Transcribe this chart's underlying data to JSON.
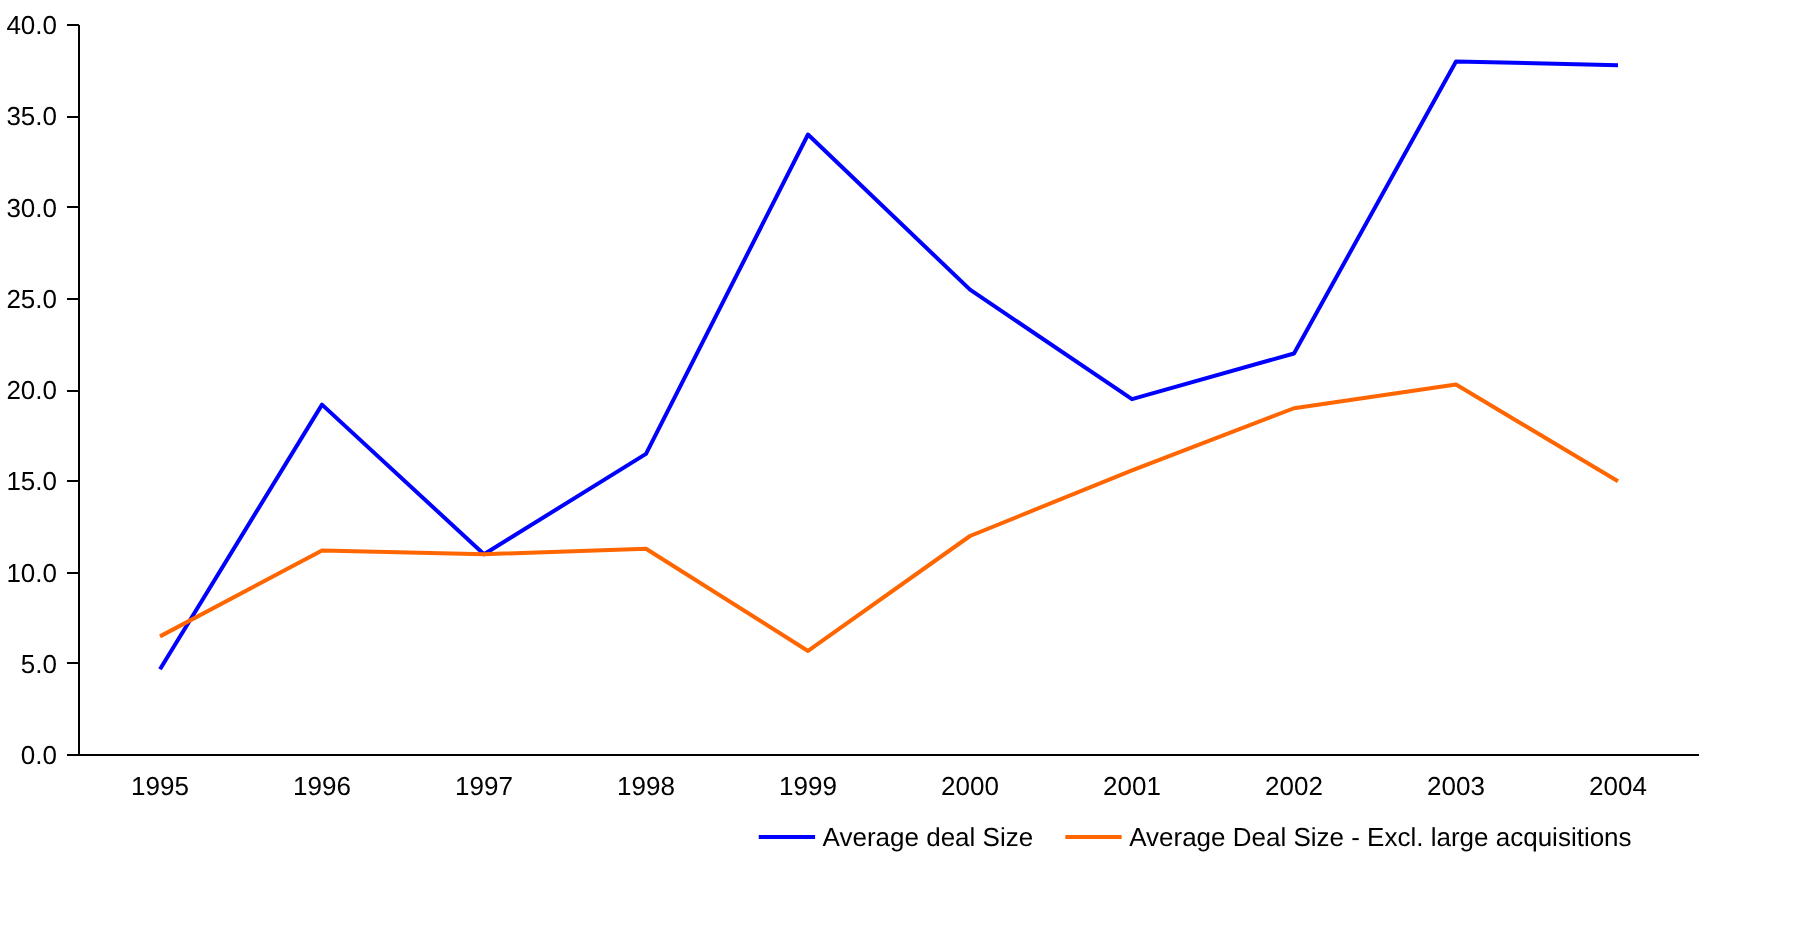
{
  "chart_data": {
    "type": "line",
    "categories": [
      "1995",
      "1996",
      "1997",
      "1998",
      "1999",
      "2000",
      "2001",
      "2002",
      "2003",
      "2004"
    ],
    "series": [
      {
        "name": "Average deal Size",
        "color": "#0000ff",
        "values": [
          4.7,
          19.2,
          11.0,
          16.5,
          34.0,
          25.5,
          19.5,
          22.0,
          38.0,
          37.8
        ]
      },
      {
        "name": "Average Deal Size - Excl. large acquisitions",
        "color": "#ff6600",
        "values": [
          6.5,
          11.2,
          11.0,
          11.3,
          5.7,
          12.0,
          15.6,
          19.0,
          20.3,
          15.0
        ]
      }
    ],
    "ylim": [
      0,
      40
    ],
    "yticks": [
      {
        "value": 0,
        "label": "0.0"
      },
      {
        "value": 5,
        "label": "5.0"
      },
      {
        "value": 10,
        "label": "10.0"
      },
      {
        "value": 15,
        "label": "15.0"
      },
      {
        "value": 20,
        "label": "20.0"
      },
      {
        "value": 25,
        "label": "25.0"
      },
      {
        "value": 30,
        "label": "30.0"
      },
      {
        "value": 35,
        "label": "35.0"
      },
      {
        "value": 40,
        "label": "40.0"
      }
    ],
    "grid": false,
    "legend": "bottom",
    "marker": "none",
    "line_style": "solid"
  }
}
